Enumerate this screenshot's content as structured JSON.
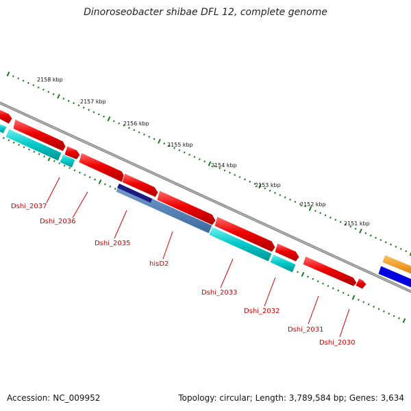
{
  "title": "Dinoroseobacter shibae DFL 12, complete genome",
  "footer": {
    "accession": "Accession: NC_009952",
    "summary": "Topology: circular; Length: 3,789,584 bp; Genes: 3,634"
  },
  "colors": {
    "backbone": "#8a8a8a",
    "tick": "#1a7a1a",
    "forward_gene": "#e00000",
    "reverse_gene": "#00c8c8",
    "rna_gene": "#4a78b0",
    "orange_track": "#f08c00",
    "blue_track": "#0000e0",
    "label": "#cc0000"
  },
  "ruler": {
    "unit": "kbp",
    "ticks": [
      "2158 kbp",
      "2157 kbp",
      "2156 kbp",
      "2155 kbp",
      "2154 kbp",
      "2153 kbp",
      "2152 kbp",
      "2151 kbp"
    ]
  },
  "genes": [
    {
      "name": "Dshi_2037",
      "strand": "reverse"
    },
    {
      "name": "Dshi_2036",
      "strand": "reverse"
    },
    {
      "name": "Dshi_2035",
      "strand": "reverse"
    },
    {
      "name": "hisD2",
      "strand": "reverse"
    },
    {
      "name": "Dshi_2033",
      "strand": "reverse"
    },
    {
      "name": "Dshi_2032",
      "strand": "reverse"
    },
    {
      "name": "Dshi_2031",
      "strand": "forward"
    },
    {
      "name": "Dshi_2030",
      "strand": "forward"
    }
  ]
}
